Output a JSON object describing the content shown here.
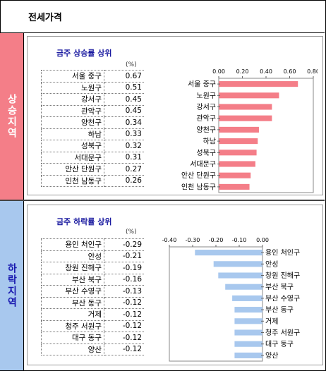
{
  "header": {
    "title": "전세가격"
  },
  "rise": {
    "side_label": "상승지역",
    "title": "금주 상승률 상위",
    "unit": "(%)",
    "items": [
      {
        "name": "서울 중구",
        "value": "0.67"
      },
      {
        "name": "노원구",
        "value": "0.51"
      },
      {
        "name": "강서구",
        "value": "0.45"
      },
      {
        "name": "관악구",
        "value": "0.45"
      },
      {
        "name": "양천구",
        "value": "0.34"
      },
      {
        "name": "하남",
        "value": "0.33"
      },
      {
        "name": "성북구",
        "value": "0.32"
      },
      {
        "name": "서대문구",
        "value": "0.31"
      },
      {
        "name": "안산 단원구",
        "value": "0.27"
      },
      {
        "name": "인천 남동구",
        "value": "0.26"
      }
    ]
  },
  "fall": {
    "side_label": "하락지역",
    "title": "금주 하락률 상위",
    "unit": "(%)",
    "items": [
      {
        "name": "용인 처인구",
        "value": "-0.29"
      },
      {
        "name": "안성",
        "value": "-0.21"
      },
      {
        "name": "창원 진해구",
        "value": "-0.19"
      },
      {
        "name": "부산 북구",
        "value": "-0.16"
      },
      {
        "name": "부산 수영구",
        "value": "-0.13"
      },
      {
        "name": "부산 동구",
        "value": "-0.12"
      },
      {
        "name": "거제",
        "value": "-0.12"
      },
      {
        "name": "청주 서원구",
        "value": "-0.12"
      },
      {
        "name": "대구 동구",
        "value": "-0.12"
      },
      {
        "name": "양산",
        "value": "-0.12"
      }
    ]
  },
  "chart_data": [
    {
      "type": "bar",
      "orientation": "horizontal",
      "categories": [
        "서울 중구",
        "노원구",
        "강서구",
        "관악구",
        "양천구",
        "하남",
        "성북구",
        "서대문구",
        "안산 단원구",
        "인천 남동구"
      ],
      "values": [
        0.67,
        0.51,
        0.45,
        0.45,
        0.34,
        0.33,
        0.32,
        0.31,
        0.27,
        0.26
      ],
      "xlim": [
        0,
        0.8
      ],
      "xticks": [
        "0.00",
        "0.20",
        "0.40",
        "0.60",
        "0.80"
      ],
      "axis_position": "top",
      "color": "#f47e88"
    },
    {
      "type": "bar",
      "orientation": "horizontal",
      "categories": [
        "용인 처인구",
        "안성",
        "창원 진해구",
        "부산 북구",
        "부산 수영구",
        "부산 동구",
        "거제",
        "청주 서원구",
        "대구 동구",
        "양산"
      ],
      "values": [
        -0.29,
        -0.21,
        -0.19,
        -0.16,
        -0.13,
        -0.12,
        -0.12,
        -0.12,
        -0.12,
        -0.12
      ],
      "xlim": [
        -0.4,
        0
      ],
      "xticks": [
        "-0.40",
        "-0.30",
        "-0.20",
        "-0.10",
        "0.00"
      ],
      "axis_position": "top",
      "color": "#a8c8ee"
    }
  ]
}
